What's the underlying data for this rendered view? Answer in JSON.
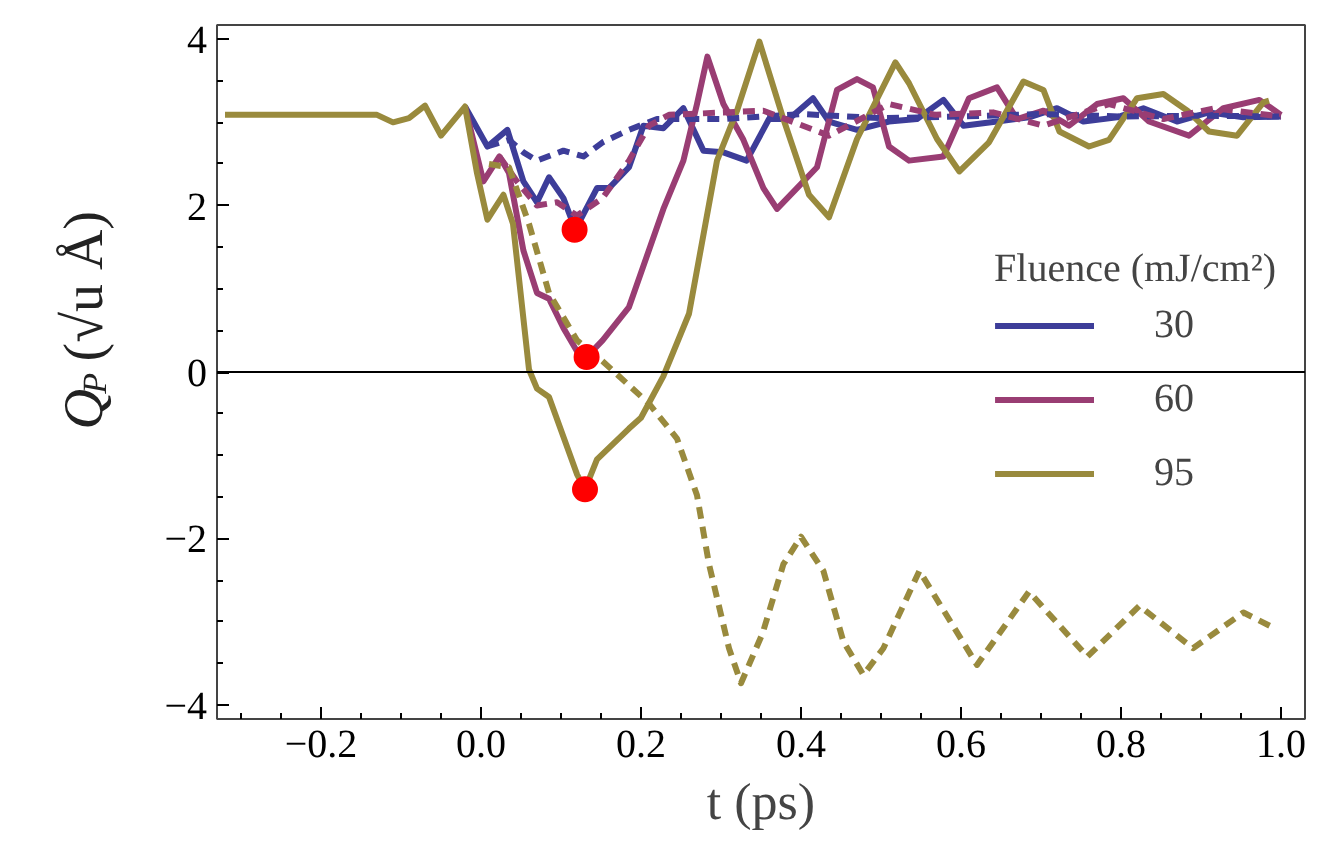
{
  "chart_data": {
    "type": "line",
    "xlabel": "t (ps)",
    "ylabel": "Q$_{P}$ (√u Å)",
    "legend_title": "Fluence (mJ/cm²)",
    "legend": "right",
    "xlim": [
      -0.33,
      1.03
    ],
    "ylim": [
      -4.17,
      4.17
    ],
    "xticks": [
      {
        "value": -0.2,
        "label": "−0.2"
      },
      {
        "value": 0.0,
        "label": "0.0"
      },
      {
        "value": 0.2,
        "label": "0.2"
      },
      {
        "value": 0.4,
        "label": "0.4"
      },
      {
        "value": 0.6,
        "label": "0.6"
      },
      {
        "value": 0.8,
        "label": "0.8"
      },
      {
        "value": 1.0,
        "label": "1.0"
      }
    ],
    "yticks": [
      {
        "value": -4,
        "label": "−4"
      },
      {
        "value": -2,
        "label": "−2"
      },
      0,
      2,
      4
    ],
    "ref_lines": [
      {
        "axis": "y",
        "value": 0,
        "color": "#000000"
      }
    ],
    "series": [
      {
        "name": "30",
        "color": "#3d3d99",
        "line_style": "solid",
        "x": [
          -0.02,
          0.008,
          0.033,
          0.053,
          0.07,
          0.085,
          0.103,
          0.118,
          0.145,
          0.16,
          0.185,
          0.203,
          0.228,
          0.253,
          0.278,
          0.303,
          0.332,
          0.36,
          0.385,
          0.415,
          0.435,
          0.47,
          0.51,
          0.545,
          0.578,
          0.603,
          0.645,
          0.685,
          0.72,
          0.753,
          0.795,
          0.828,
          0.87,
          0.91,
          0.953,
          1.0
        ],
        "values": [
          3.19,
          2.71,
          2.91,
          2.29,
          2.04,
          2.34,
          2.09,
          1.71,
          2.21,
          2.21,
          2.46,
          2.96,
          2.93,
          3.17,
          2.66,
          2.64,
          2.54,
          3.04,
          3.04,
          3.29,
          3.01,
          2.91,
          3.01,
          3.04,
          3.27,
          2.96,
          3.01,
          3.06,
          3.17,
          3.01,
          3.06,
          3.17,
          3.01,
          3.12,
          3.06,
          3.07
        ]
      },
      {
        "name": "60",
        "color": "#993d73",
        "line_style": "solid",
        "x": [
          -0.02,
          0.003,
          0.023,
          0.035,
          0.053,
          0.07,
          0.085,
          0.103,
          0.12,
          0.132,
          0.152,
          0.185,
          0.228,
          0.253,
          0.27,
          0.283,
          0.303,
          0.328,
          0.353,
          0.37,
          0.395,
          0.42,
          0.445,
          0.47,
          0.49,
          0.51,
          0.535,
          0.578,
          0.61,
          0.645,
          0.67,
          0.703,
          0.735,
          0.77,
          0.803,
          0.835,
          0.885,
          0.928,
          0.973,
          1.0
        ],
        "values": [
          3.19,
          2.29,
          2.59,
          2.39,
          1.46,
          0.95,
          0.88,
          0.53,
          0.25,
          0.18,
          0.38,
          0.78,
          1.96,
          2.54,
          3.22,
          3.79,
          3.22,
          2.79,
          2.21,
          1.96,
          2.21,
          2.46,
          3.39,
          3.52,
          3.42,
          2.71,
          2.54,
          2.59,
          3.29,
          3.42,
          3.04,
          3.14,
          2.96,
          3.22,
          3.29,
          3.01,
          2.84,
          3.17,
          3.27,
          3.09
        ]
      },
      {
        "name": "95",
        "color": "#998a3d",
        "line_style": "solid",
        "x": [
          -0.32,
          -0.13,
          -0.11,
          -0.09,
          -0.07,
          -0.05,
          -0.02,
          -0.005,
          0.008,
          0.028,
          0.04,
          0.06,
          0.07,
          0.085,
          0.12,
          0.13,
          0.145,
          0.185,
          0.2,
          0.228,
          0.26,
          0.295,
          0.32,
          0.348,
          0.378,
          0.41,
          0.435,
          0.47,
          0.518,
          0.535,
          0.57,
          0.598,
          0.635,
          0.678,
          0.703,
          0.723,
          0.76,
          0.785,
          0.82,
          0.853,
          0.883,
          0.91,
          0.945,
          0.978,
          0.985
        ],
        "values": [
          3.09,
          3.09,
          3.0,
          3.05,
          3.2,
          2.84,
          3.19,
          2.39,
          1.83,
          2.13,
          1.78,
          0.03,
          -0.2,
          -0.3,
          -1.23,
          -1.41,
          -1.05,
          -0.68,
          -0.55,
          -0.05,
          0.7,
          2.54,
          3.14,
          3.97,
          3.04,
          2.13,
          1.86,
          2.8,
          3.72,
          3.47,
          2.8,
          2.41,
          2.76,
          3.49,
          3.39,
          2.89,
          2.71,
          2.79,
          3.29,
          3.34,
          3.14,
          2.89,
          2.84,
          3.24,
          3.26
        ]
      },
      {
        "color": "#3d3d99",
        "line_style": "dashed",
        "x": [
          0.008,
          0.035,
          0.053,
          0.07,
          0.103,
          0.128,
          0.152,
          0.185,
          0.22,
          0.3,
          0.4,
          0.5,
          0.6,
          0.7,
          0.8,
          0.9,
          1.0
        ],
        "values": [
          2.71,
          2.79,
          2.64,
          2.54,
          2.66,
          2.59,
          2.76,
          2.91,
          3.04,
          3.04,
          3.1,
          3.05,
          3.07,
          3.1,
          3.07,
          3.08,
          3.07
        ]
      },
      {
        "color": "#993d73",
        "line_style": "dashed",
        "x": [
          0.023,
          0.045,
          0.07,
          0.095,
          0.12,
          0.152,
          0.185,
          0.21,
          0.235,
          0.353,
          0.435,
          0.51,
          0.568,
          0.64,
          0.703,
          0.785,
          0.853,
          0.918,
          1.0
        ],
        "values": [
          2.59,
          2.29,
          2.0,
          2.04,
          1.88,
          2.09,
          2.54,
          2.96,
          3.09,
          3.14,
          2.84,
          3.22,
          3.09,
          3.12,
          2.96,
          3.22,
          3.04,
          3.17,
          3.07
        ]
      },
      {
        "color": "#998a3d",
        "line_style": "dashed",
        "x": [
          0.01,
          0.035,
          0.06,
          0.085,
          0.12,
          0.152,
          0.21,
          0.245,
          0.27,
          0.285,
          0.31,
          0.325,
          0.352,
          0.378,
          0.4,
          0.428,
          0.453,
          0.478,
          0.503,
          0.548,
          0.62,
          0.685,
          0.758,
          0.823,
          0.89,
          0.953,
          0.99
        ],
        "values": [
          2.5,
          2.46,
          1.78,
          0.95,
          0.38,
          0.13,
          -0.38,
          -0.8,
          -1.48,
          -2.31,
          -3.32,
          -3.74,
          -3.14,
          -2.31,
          -1.98,
          -2.39,
          -3.24,
          -3.64,
          -3.32,
          -2.39,
          -3.52,
          -2.64,
          -3.42,
          -2.81,
          -3.32,
          -2.89,
          -3.07
        ]
      },
      {
        "type": "scatter",
        "marker": "circle",
        "color": "#ff0000",
        "x": [
          0.117,
          0.132,
          0.13
        ],
        "values": [
          1.71,
          0.18,
          -1.41
        ]
      }
    ]
  }
}
